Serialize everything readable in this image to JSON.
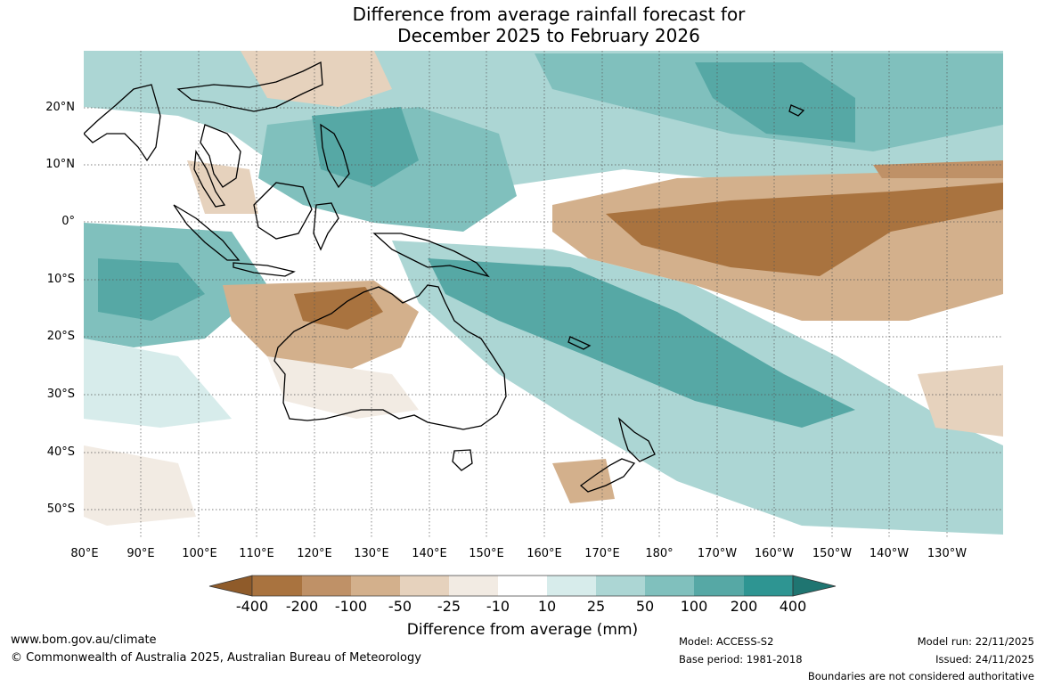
{
  "title": {
    "line1": "Difference from average rainfall forecast for",
    "line2": "December 2025 to February 2026"
  },
  "map": {
    "latitude_labels": [
      "20°N",
      "10°N",
      "0°",
      "10°S",
      "20°S",
      "30°S",
      "40°S",
      "50°S"
    ],
    "longitude_labels": [
      "80°E",
      "90°E",
      "100°E",
      "110°E",
      "120°E",
      "130°E",
      "140°E",
      "150°E",
      "160°E",
      "170°E",
      "180°",
      "170°W",
      "160°W",
      "150°W",
      "140°W",
      "130°W"
    ]
  },
  "legend": {
    "title": "Difference from average (mm)",
    "ticks": [
      "-400",
      "-200",
      "-100",
      "-50",
      "-25",
      "-10",
      "10",
      "25",
      "50",
      "100",
      "200",
      "400"
    ],
    "colors": {
      "below_min": "#8f5b2a",
      "bins": [
        "#a9733f",
        "#bf9167",
        "#d3b08c",
        "#e6d2bd",
        "#f2ebe3",
        "#ffffff",
        "#d7eceb",
        "#acd6d4",
        "#80c0bd",
        "#56a8a5",
        "#2e9592"
      ],
      "above_max": "#1f7571"
    }
  },
  "footer": {
    "website": "www.bom.gov.au/climate",
    "copyright": "© Commonwealth of Australia 2025, Australian Bureau of Meteorology",
    "model": "Model: ACCESS-S2",
    "base_period": "Base period: 1981-2018",
    "model_run": "Model run: 22/11/2025",
    "issued": "Issued: 24/11/2025",
    "disclaimer": "Boundaries are not considered authoritative"
  }
}
